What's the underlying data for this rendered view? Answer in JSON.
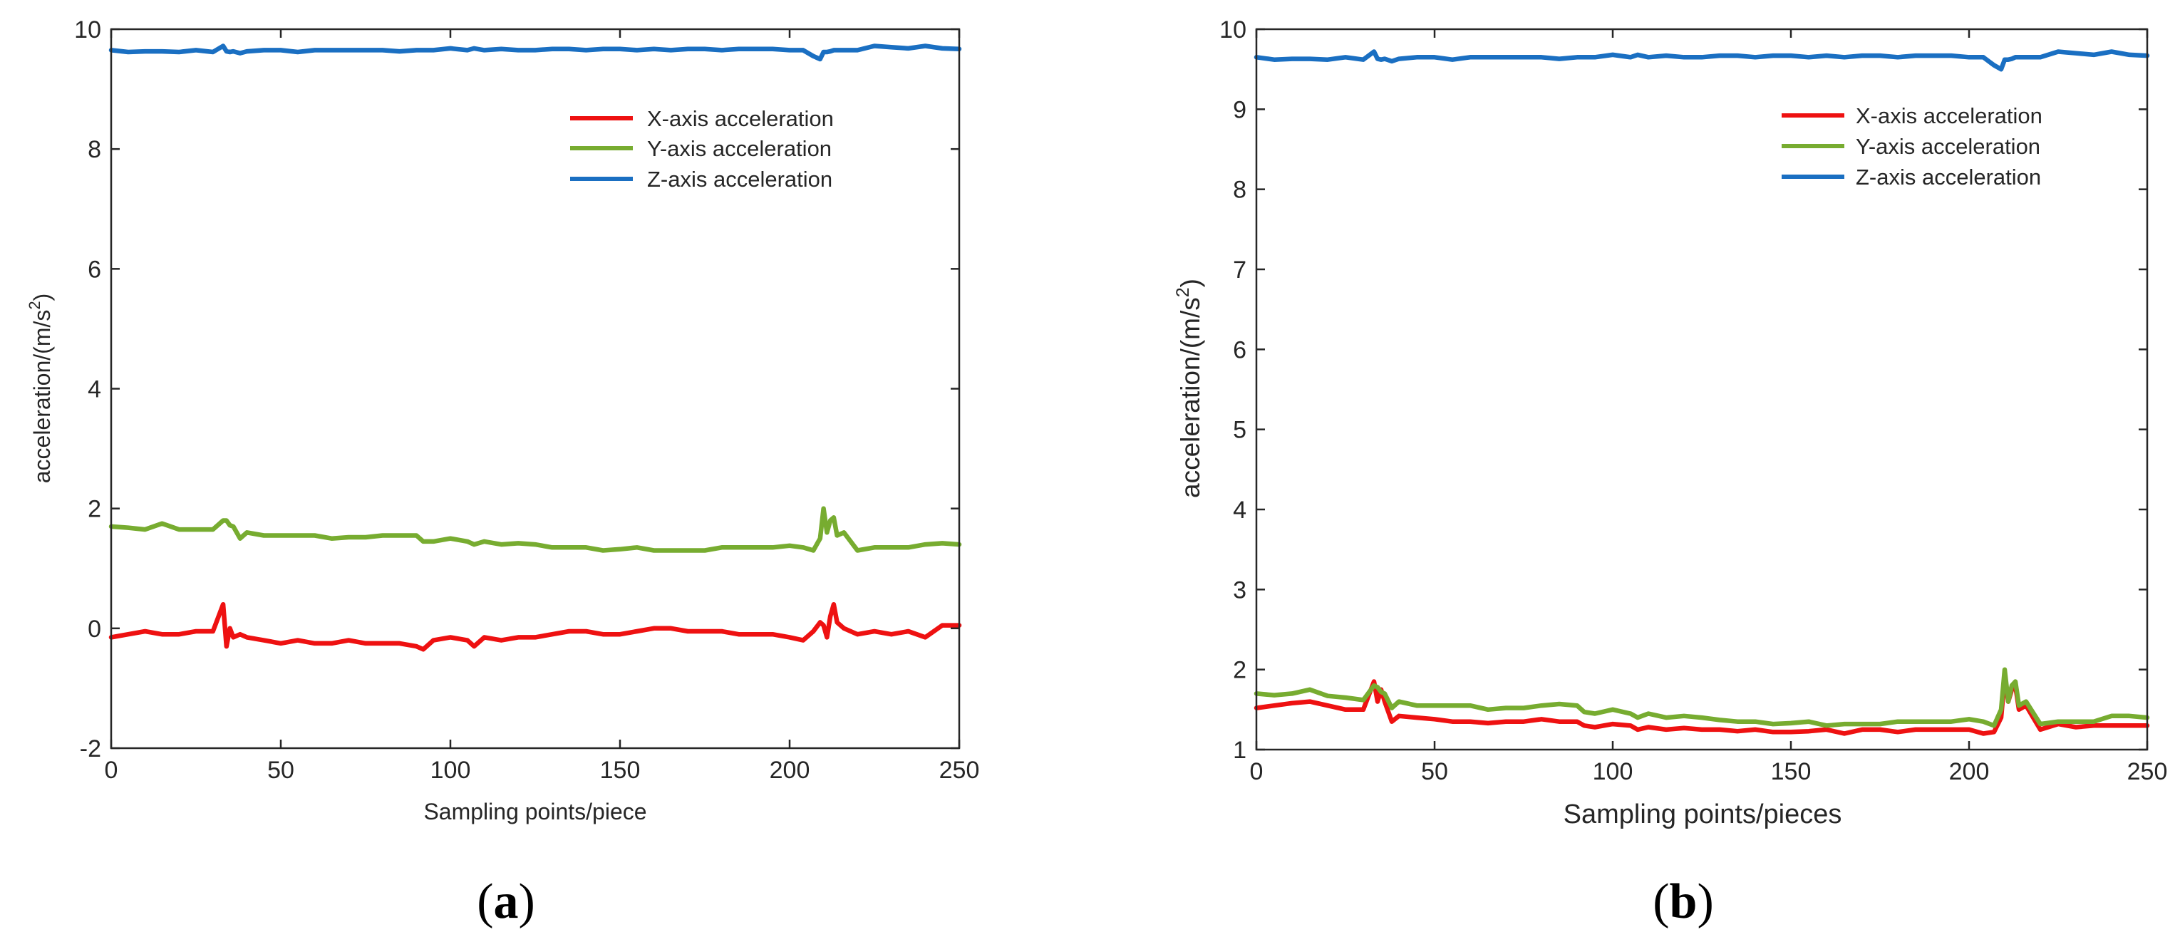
{
  "colors": {
    "x_axis": "#ee1111",
    "y_axis": "#77ac30",
    "z_axis": "#1a6fc2"
  },
  "chart_data": [
    {
      "type": "line",
      "panel_label_parts": [
        "(",
        "a",
        ")"
      ],
      "xlabel": "Sampling points/piece",
      "ylabel": "acceleration/(m/s",
      "ylabel_sup": "2",
      "ylabel_close": ")",
      "xlim": [
        0,
        250
      ],
      "ylim": [
        -2,
        10
      ],
      "xticks": [
        0,
        50,
        100,
        150,
        200,
        250
      ],
      "yticks": [
        -2,
        0,
        2,
        4,
        6,
        8,
        10
      ],
      "legend_position": "top-right",
      "x": [
        0,
        5,
        10,
        15,
        20,
        25,
        30,
        33,
        34,
        35,
        36,
        38,
        40,
        45,
        50,
        55,
        60,
        65,
        70,
        75,
        80,
        85,
        90,
        92,
        95,
        100,
        105,
        107,
        110,
        115,
        120,
        125,
        130,
        135,
        140,
        145,
        150,
        155,
        160,
        165,
        170,
        175,
        180,
        185,
        190,
        195,
        200,
        204,
        207,
        209,
        210,
        211,
        212,
        213,
        214,
        216,
        220,
        225,
        230,
        235,
        240,
        245,
        250
      ],
      "series": [
        {
          "name": "X-axis acceleration",
          "color_key": "x_axis",
          "values": [
            -0.15,
            -0.1,
            -0.05,
            -0.1,
            -0.1,
            -0.05,
            -0.05,
            0.4,
            -0.3,
            0.0,
            -0.15,
            -0.1,
            -0.15,
            -0.2,
            -0.25,
            -0.2,
            -0.25,
            -0.25,
            -0.2,
            -0.25,
            -0.25,
            -0.25,
            -0.3,
            -0.35,
            -0.2,
            -0.15,
            -0.2,
            -0.3,
            -0.15,
            -0.2,
            -0.15,
            -0.15,
            -0.1,
            -0.05,
            -0.05,
            -0.1,
            -0.1,
            -0.05,
            0.0,
            0.0,
            -0.05,
            -0.05,
            -0.05,
            -0.1,
            -0.1,
            -0.1,
            -0.15,
            -0.2,
            -0.05,
            0.1,
            0.05,
            -0.15,
            0.2,
            0.4,
            0.1,
            0.0,
            -0.1,
            -0.05,
            -0.1,
            -0.05,
            -0.15,
            0.05,
            0.05
          ]
        },
        {
          "name": "Y-axis acceleration",
          "color_key": "y_axis",
          "values": [
            1.7,
            1.68,
            1.65,
            1.75,
            1.65,
            1.65,
            1.65,
            1.8,
            1.8,
            1.72,
            1.7,
            1.5,
            1.6,
            1.55,
            1.55,
            1.55,
            1.55,
            1.5,
            1.52,
            1.52,
            1.55,
            1.55,
            1.55,
            1.45,
            1.45,
            1.5,
            1.45,
            1.4,
            1.45,
            1.4,
            1.42,
            1.4,
            1.35,
            1.35,
            1.35,
            1.3,
            1.32,
            1.35,
            1.3,
            1.3,
            1.3,
            1.3,
            1.35,
            1.35,
            1.35,
            1.35,
            1.38,
            1.35,
            1.3,
            1.5,
            2.0,
            1.6,
            1.8,
            1.85,
            1.55,
            1.6,
            1.3,
            1.35,
            1.35,
            1.35,
            1.4,
            1.42,
            1.4
          ]
        },
        {
          "name": "Z-axis acceleration",
          "color_key": "z_axis",
          "values": [
            9.65,
            9.62,
            9.63,
            9.63,
            9.62,
            9.65,
            9.62,
            9.72,
            9.63,
            9.62,
            9.63,
            9.6,
            9.63,
            9.65,
            9.65,
            9.62,
            9.65,
            9.65,
            9.65,
            9.65,
            9.65,
            9.63,
            9.65,
            9.65,
            9.65,
            9.68,
            9.65,
            9.68,
            9.65,
            9.67,
            9.65,
            9.65,
            9.67,
            9.67,
            9.65,
            9.67,
            9.67,
            9.65,
            9.67,
            9.65,
            9.67,
            9.67,
            9.65,
            9.67,
            9.67,
            9.67,
            9.65,
            9.65,
            9.55,
            9.5,
            9.62,
            9.62,
            9.63,
            9.65,
            9.65,
            9.65,
            9.65,
            9.72,
            9.7,
            9.68,
            9.72,
            9.68,
            9.67
          ]
        }
      ]
    },
    {
      "type": "line",
      "panel_label_parts": [
        "(",
        "b",
        ")"
      ],
      "xlabel": "Sampling points/pieces",
      "ylabel": "acceleration/(m/s",
      "ylabel_sup": "2",
      "ylabel_close": ")",
      "xlim": [
        0,
        250
      ],
      "ylim": [
        1,
        10
      ],
      "xticks": [
        0,
        50,
        100,
        150,
        200,
        250
      ],
      "yticks": [
        1,
        2,
        3,
        4,
        5,
        6,
        7,
        8,
        9,
        10
      ],
      "legend_position": "top-right",
      "x": [
        0,
        5,
        10,
        15,
        20,
        25,
        30,
        33,
        34,
        35,
        36,
        38,
        40,
        45,
        50,
        55,
        60,
        65,
        70,
        75,
        80,
        85,
        90,
        92,
        95,
        100,
        105,
        107,
        110,
        115,
        120,
        125,
        130,
        135,
        140,
        145,
        150,
        155,
        160,
        165,
        170,
        175,
        180,
        185,
        190,
        195,
        200,
        204,
        207,
        209,
        210,
        211,
        212,
        213,
        214,
        216,
        220,
        225,
        230,
        235,
        240,
        245,
        250
      ],
      "series": [
        {
          "name": "X-axis acceleration",
          "color_key": "x_axis",
          "values": [
            1.52,
            1.55,
            1.58,
            1.6,
            1.55,
            1.5,
            1.5,
            1.85,
            1.6,
            1.75,
            1.6,
            1.35,
            1.42,
            1.4,
            1.38,
            1.35,
            1.35,
            1.33,
            1.35,
            1.35,
            1.38,
            1.35,
            1.35,
            1.3,
            1.28,
            1.32,
            1.3,
            1.25,
            1.28,
            1.25,
            1.27,
            1.25,
            1.25,
            1.23,
            1.25,
            1.22,
            1.22,
            1.23,
            1.25,
            1.2,
            1.25,
            1.25,
            1.22,
            1.25,
            1.25,
            1.25,
            1.25,
            1.2,
            1.22,
            1.4,
            1.9,
            1.6,
            1.75,
            1.8,
            1.5,
            1.55,
            1.25,
            1.32,
            1.28,
            1.3,
            1.3,
            1.3,
            1.3
          ]
        },
        {
          "name": "Y-axis acceleration",
          "color_key": "y_axis",
          "values": [
            1.7,
            1.68,
            1.7,
            1.75,
            1.67,
            1.65,
            1.62,
            1.8,
            1.78,
            1.72,
            1.7,
            1.52,
            1.6,
            1.55,
            1.55,
            1.55,
            1.55,
            1.5,
            1.52,
            1.52,
            1.55,
            1.57,
            1.55,
            1.47,
            1.45,
            1.5,
            1.45,
            1.4,
            1.45,
            1.4,
            1.42,
            1.4,
            1.37,
            1.35,
            1.35,
            1.32,
            1.33,
            1.35,
            1.3,
            1.32,
            1.32,
            1.32,
            1.35,
            1.35,
            1.35,
            1.35,
            1.38,
            1.35,
            1.3,
            1.5,
            2.0,
            1.6,
            1.8,
            1.85,
            1.55,
            1.6,
            1.32,
            1.35,
            1.35,
            1.35,
            1.42,
            1.42,
            1.4
          ]
        },
        {
          "name": "Z-axis acceleration",
          "color_key": "z_axis",
          "values": [
            9.65,
            9.62,
            9.63,
            9.63,
            9.62,
            9.65,
            9.62,
            9.72,
            9.63,
            9.62,
            9.63,
            9.6,
            9.63,
            9.65,
            9.65,
            9.62,
            9.65,
            9.65,
            9.65,
            9.65,
            9.65,
            9.63,
            9.65,
            9.65,
            9.65,
            9.68,
            9.65,
            9.68,
            9.65,
            9.67,
            9.65,
            9.65,
            9.67,
            9.67,
            9.65,
            9.67,
            9.67,
            9.65,
            9.67,
            9.65,
            9.67,
            9.67,
            9.65,
            9.67,
            9.67,
            9.67,
            9.65,
            9.65,
            9.55,
            9.5,
            9.62,
            9.62,
            9.63,
            9.65,
            9.65,
            9.65,
            9.65,
            9.72,
            9.7,
            9.68,
            9.72,
            9.68,
            9.67
          ]
        }
      ]
    }
  ]
}
